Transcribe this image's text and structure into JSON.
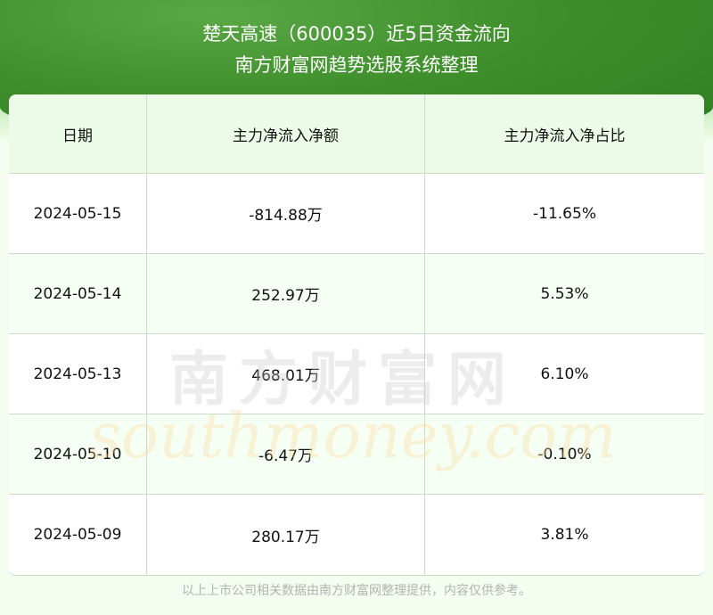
{
  "header": {
    "title": "楚天高速（600035）近5日资金流向",
    "subtitle": "南方财富网趋势选股系统整理"
  },
  "table": {
    "columns": [
      "日期",
      "主力净流入净额",
      "主力净流入净占比"
    ],
    "rows": [
      [
        "2024-05-15",
        "-814.88万",
        "-11.65%"
      ],
      [
        "2024-05-14",
        "252.97万",
        "5.53%"
      ],
      [
        "2024-05-13",
        "468.01万",
        "6.10%"
      ],
      [
        "2024-05-10",
        "-6.47万",
        "-0.10%"
      ],
      [
        "2024-05-09",
        "280.17万",
        "3.81%"
      ]
    ]
  },
  "watermark": {
    "cn": "南方财富网",
    "en": "southmoney.com"
  },
  "footer": "以上上市公司相关数据由南方财富网整理提供，内容仅供参考。",
  "colors": {
    "banner": "#3f8f2c",
    "header_row": "#ecfbe8",
    "alt_row": "#f6fff3",
    "background": "#f4fdef"
  }
}
